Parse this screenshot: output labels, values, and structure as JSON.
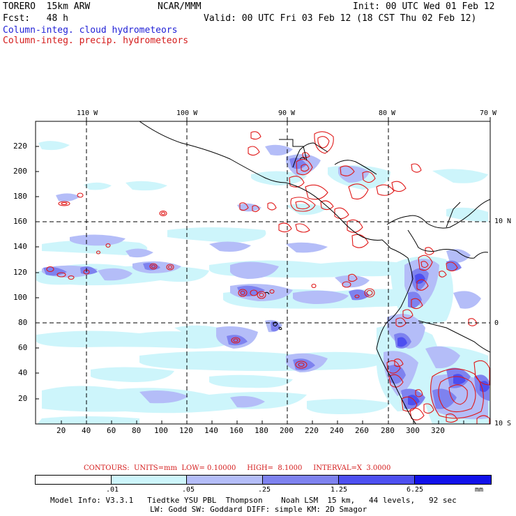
{
  "header": {
    "model": "TORERO  15km ARW",
    "org": "NCAR/MMM",
    "init": "Init: 00 UTC Wed 01 Feb 12",
    "fcst": "Fcst:   48 h",
    "valid": "Valid: 00 UTC Fri 03 Feb 12 (18 CST Thu 02 Feb 12)",
    "field1": "Column-integ. cloud hydrometeors",
    "field2": "Column-integ. precip. hydrometeors"
  },
  "axes": {
    "lon_labels": [
      "110 W",
      "100 W",
      "90 W",
      "80 W",
      "70 W"
    ],
    "lat_labels": [
      "10 N",
      "0",
      "10 S"
    ],
    "x_ticks": [
      "20",
      "40",
      "60",
      "80",
      "100",
      "120",
      "140",
      "160",
      "180",
      "200",
      "220",
      "240",
      "260",
      "280",
      "300",
      "320"
    ],
    "y_ticks": [
      "20",
      "40",
      "60",
      "80",
      "100",
      "120",
      "140",
      "160",
      "180",
      "200",
      "220"
    ]
  },
  "contours": {
    "label": "CONTOURS:  UNITS=mm  LOW= 0.10000     HIGH=  8.1000     INTERVAL=X  3.0000"
  },
  "colorbar": {
    "labels": [
      ".01",
      ".05",
      ".25",
      "1.25",
      "6.25"
    ],
    "unit": "mm",
    "colors": [
      "#ffffff",
      "#cdf5fb",
      "#b4bdf8",
      "#7e82ef",
      "#4d4ff0",
      "#1111ea"
    ]
  },
  "footer": {
    "line1": "Model Info: V3.3.1   Tiedtke YSU PBL  Thompson    Noah LSM  15 km,   44 levels,   92 sec",
    "line2": "LW: Godd SW: Goddard DIFF: simple KM: 2D Smagor"
  }
}
